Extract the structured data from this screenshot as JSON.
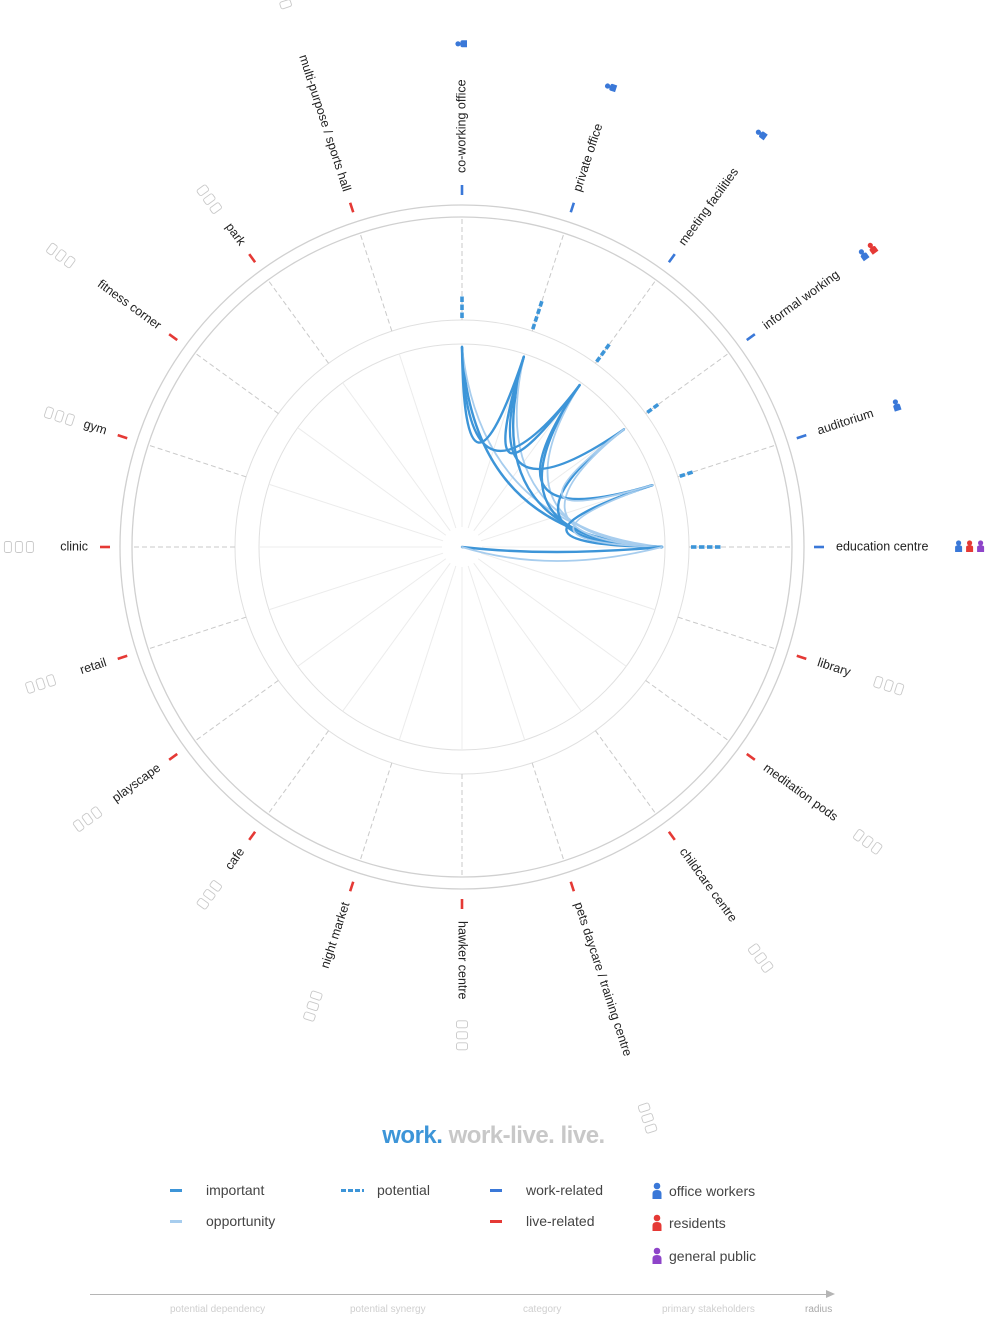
{
  "nodes": [
    {
      "label": "co-working office",
      "category": "work",
      "stakeholders": [
        "office"
      ]
    },
    {
      "label": "private office",
      "category": "work",
      "stakeholders": [
        "office"
      ]
    },
    {
      "label": "meeting facilities",
      "category": "work",
      "stakeholders": [
        "office"
      ]
    },
    {
      "label": "informal working",
      "category": "work",
      "stakeholders": [
        "office",
        "residents"
      ]
    },
    {
      "label": "auditorium",
      "category": "work",
      "stakeholders": [
        "office"
      ]
    },
    {
      "label": "education centre",
      "category": "work",
      "stakeholders": [
        "office",
        "residents",
        "public"
      ]
    },
    {
      "label": "library",
      "category": "live",
      "stakeholders": []
    },
    {
      "label": "meditation pods",
      "category": "live",
      "stakeholders": []
    },
    {
      "label": "childcare centre",
      "category": "live",
      "stakeholders": []
    },
    {
      "label": "pets daycare / training centre",
      "category": "live",
      "stakeholders": []
    },
    {
      "label": "hawker centre",
      "category": "live",
      "stakeholders": []
    },
    {
      "label": "night market",
      "category": "live",
      "stakeholders": []
    },
    {
      "label": "cafe",
      "category": "live",
      "stakeholders": []
    },
    {
      "label": "playscape",
      "category": "live",
      "stakeholders": []
    },
    {
      "label": "retail",
      "category": "live",
      "stakeholders": []
    },
    {
      "label": "clinic",
      "category": "live",
      "stakeholders": []
    },
    {
      "label": "gym",
      "category": "live",
      "stakeholders": []
    },
    {
      "label": "fitness corner",
      "category": "live",
      "stakeholders": []
    },
    {
      "label": "park",
      "category": "live",
      "stakeholders": []
    },
    {
      "label": "multi-purpose / sports hall",
      "category": "live",
      "stakeholders": []
    }
  ],
  "potential_levels": [
    3,
    4,
    3,
    2,
    2,
    4,
    0,
    0,
    0,
    0,
    0,
    0,
    0,
    0,
    0,
    0,
    0,
    0,
    0,
    0
  ],
  "links": [
    {
      "from": "education centre",
      "to": "co-working office",
      "type": "important"
    },
    {
      "from": "education centre",
      "to": "co-working office",
      "type": "opportunity"
    },
    {
      "from": "education centre",
      "to": "private office",
      "type": "important"
    },
    {
      "from": "education centre",
      "to": "private office",
      "type": "opportunity"
    },
    {
      "from": "education centre",
      "to": "meeting facilities",
      "type": "important"
    },
    {
      "from": "education centre",
      "to": "meeting facilities",
      "type": "opportunity"
    },
    {
      "from": "education centre",
      "to": "informal working",
      "type": "important"
    },
    {
      "from": "education centre",
      "to": "informal working",
      "type": "opportunity"
    },
    {
      "from": "education centre",
      "to": "auditorium",
      "type": "important"
    },
    {
      "from": "education centre",
      "to": "auditorium",
      "type": "opportunity"
    },
    {
      "from": "education centre",
      "to": "education centre",
      "type": "important"
    },
    {
      "from": "education centre",
      "to": "education centre",
      "type": "opportunity"
    },
    {
      "from": "co-working office",
      "to": "private office",
      "type": "important"
    },
    {
      "from": "co-working office",
      "to": "meeting facilities",
      "type": "important"
    },
    {
      "from": "private office",
      "to": "meeting facilities",
      "type": "important"
    },
    {
      "from": "private office",
      "to": "informal working",
      "type": "important"
    },
    {
      "from": "meeting facilities",
      "to": "auditorium",
      "type": "important"
    },
    {
      "from": "informal working",
      "to": "auditorium",
      "type": "opportunity"
    }
  ],
  "title": {
    "part1": "work.",
    "part2": "work-live.",
    "part3": "live."
  },
  "legend": {
    "important": "important",
    "opportunity": "opportunity",
    "potential": "potential",
    "work_related": "work-related",
    "live_related": "live-related",
    "office_workers": "office workers",
    "residents": "residents",
    "general_public": "general public"
  },
  "axis": {
    "potential_dependency": "potential dependency",
    "potential_synergy": "potential synergy",
    "category": "category",
    "primary_stakeholders": "primary stakeholders",
    "radius": "radius"
  },
  "colors": {
    "important": "#3d95d8",
    "opportunity": "#a7cdee",
    "potential": "#3d95d8",
    "work": "#3a78d8",
    "live": "#e53935",
    "office": "#3a78d8",
    "residents": "#e53935",
    "public": "#8e44c9",
    "empty": "#c8c8c8"
  }
}
